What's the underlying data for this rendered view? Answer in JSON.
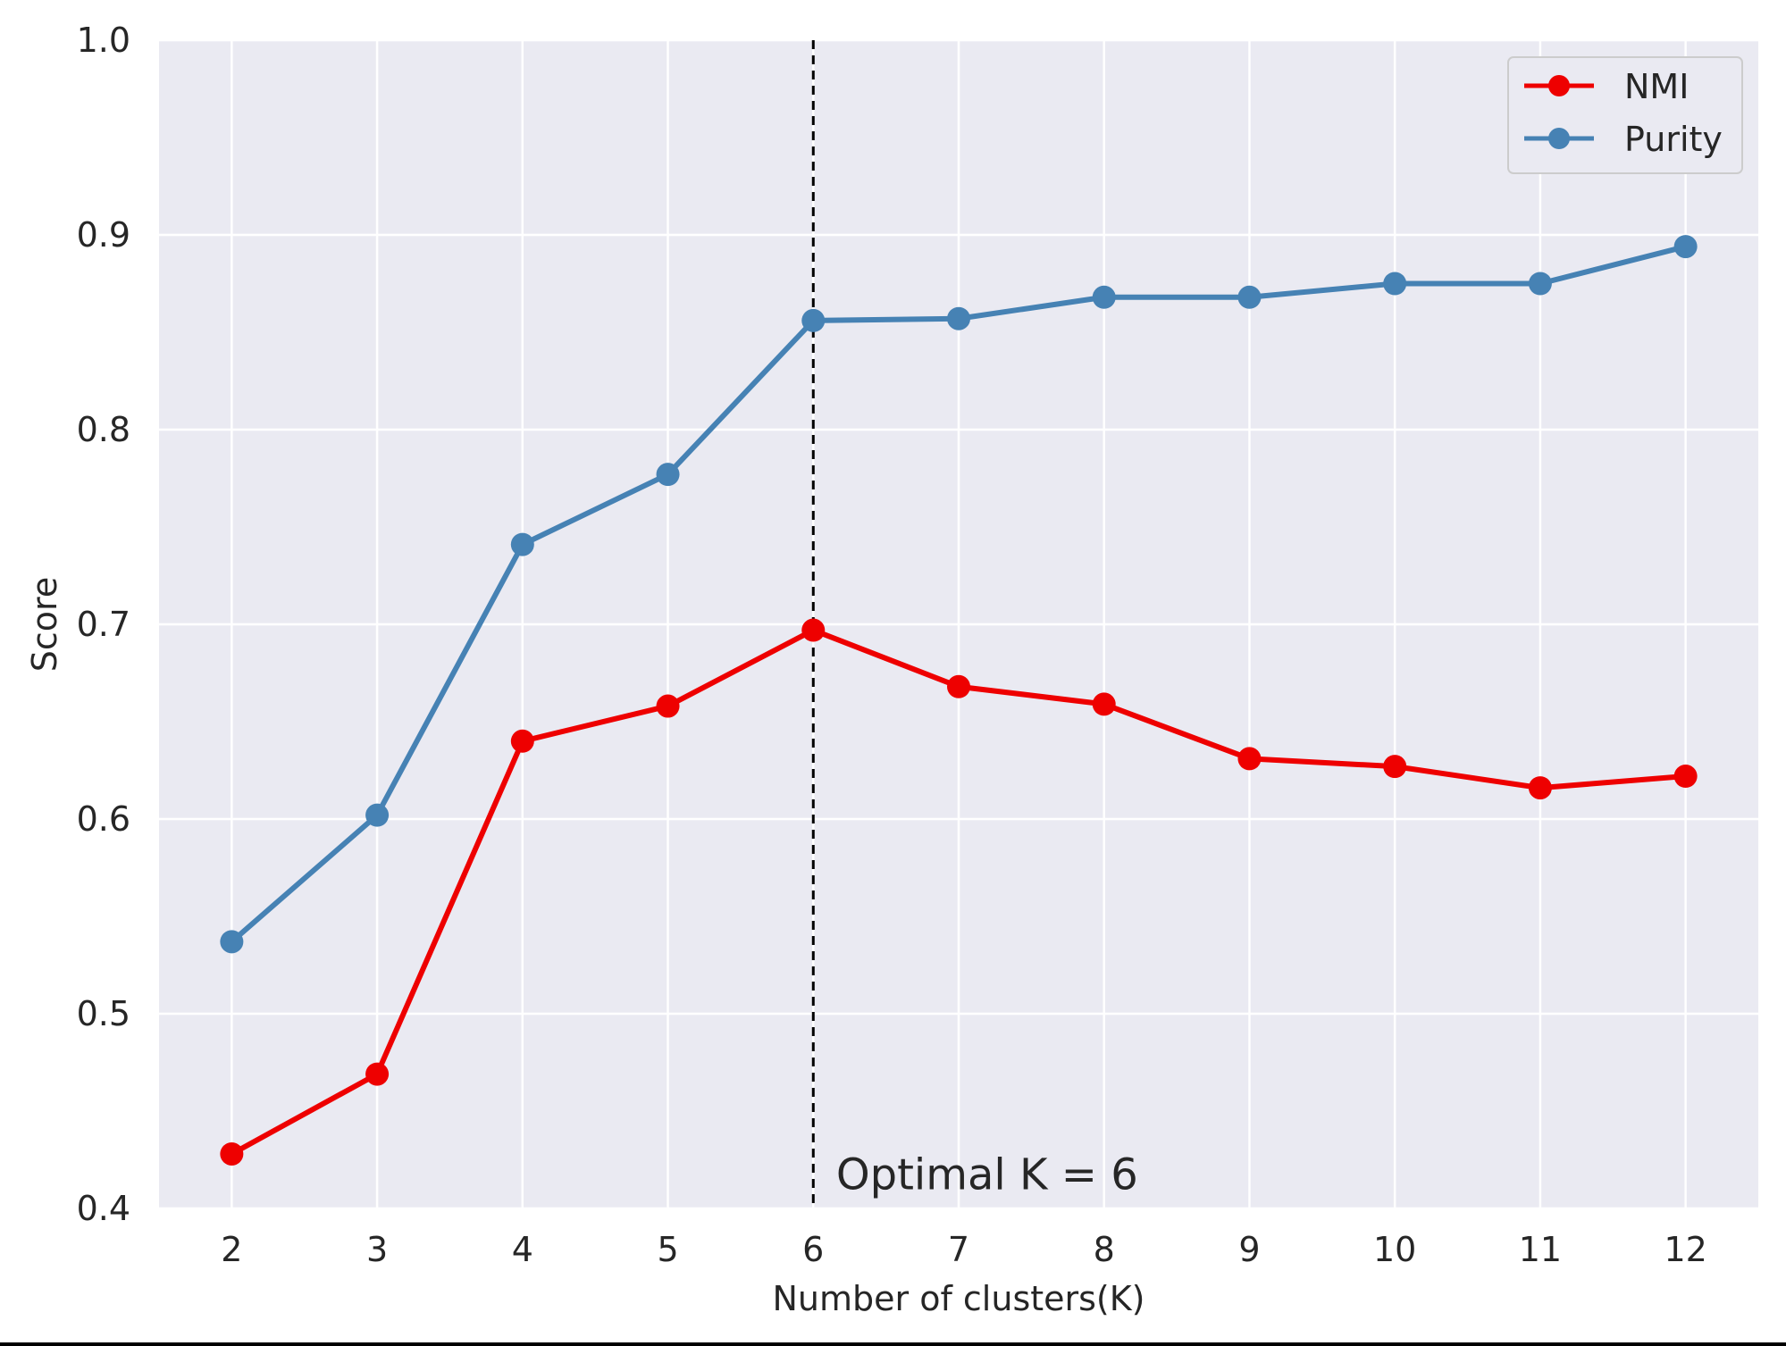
{
  "chart_data": {
    "type": "line",
    "x": [
      2,
      3,
      4,
      5,
      6,
      7,
      8,
      9,
      10,
      11,
      12
    ],
    "x_tick_labels": [
      "2",
      "3",
      "4",
      "5",
      "6",
      "7",
      "8",
      "9",
      "10",
      "11",
      "12"
    ],
    "xlim": [
      1.5,
      12.5
    ],
    "ylim": [
      0.4,
      1.0
    ],
    "y_ticks": [
      0.4,
      0.5,
      0.6,
      0.7,
      0.8,
      0.9,
      1.0
    ],
    "y_tick_labels": [
      "0.4",
      "0.5",
      "0.6",
      "0.7",
      "0.8",
      "0.9",
      "1.0"
    ],
    "xlabel": "Number of clusters(K)",
    "ylabel": "Score",
    "grid": true,
    "background_color": "#eaeaf2",
    "legend_position": "top-right",
    "series": [
      {
        "name": "NMI",
        "color": "#ee0000",
        "values": [
          0.428,
          0.469,
          0.64,
          0.658,
          0.697,
          0.668,
          0.659,
          0.631,
          0.627,
          0.616,
          0.622
        ]
      },
      {
        "name": "Purity",
        "color": "#4682b4",
        "values": [
          0.537,
          0.602,
          0.741,
          0.777,
          0.856,
          0.857,
          0.868,
          0.868,
          0.875,
          0.875,
          0.894
        ]
      }
    ],
    "vertical_line": {
      "x": 6,
      "style": "dashed",
      "color": "#000000"
    },
    "annotation": {
      "text": "Optimal K = 6",
      "x": 6.2,
      "y": 0.42
    }
  }
}
